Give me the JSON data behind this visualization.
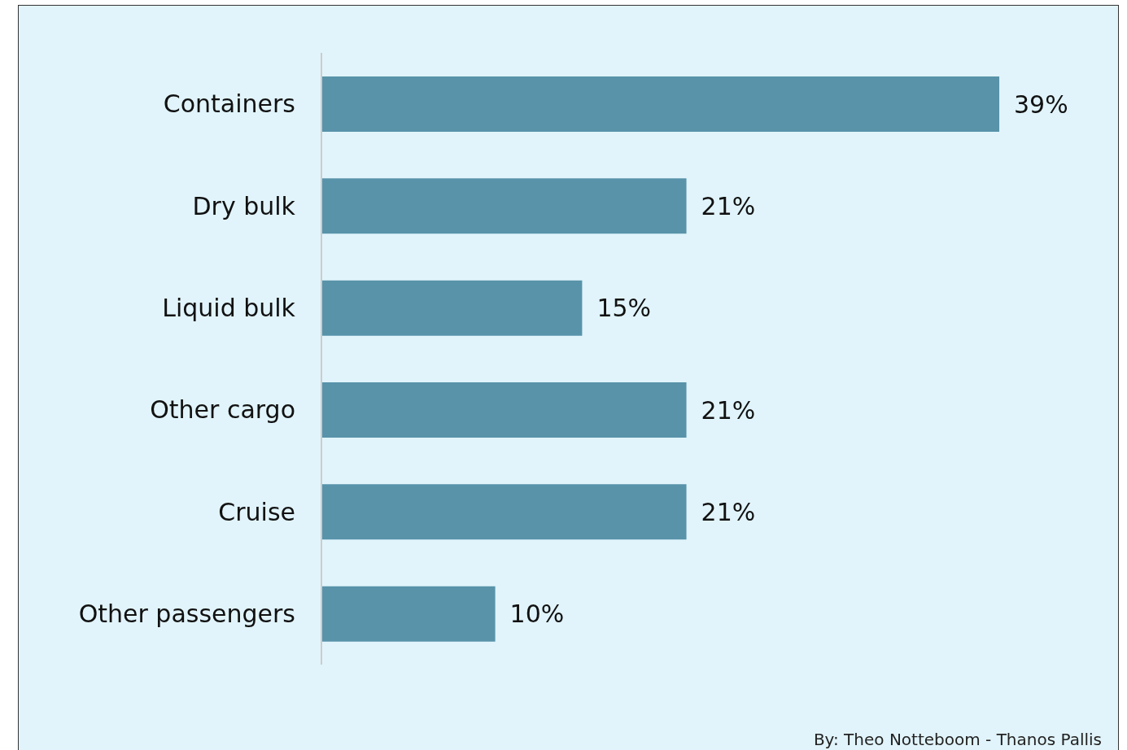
{
  "chart_data": {
    "type": "bar",
    "orientation": "horizontal",
    "categories": [
      "Containers",
      "Dry bulk",
      "Liquid bulk",
      "Other cargo",
      "Cruise",
      "Other passengers"
    ],
    "values": [
      39,
      21,
      15,
      21,
      21,
      10
    ],
    "value_labels": [
      "39%",
      "21%",
      "15%",
      "21%",
      "21%",
      "10%"
    ],
    "color": "#5893aa",
    "annotations": [
      "By: Theo Notteboom - Thanos Pallis"
    ]
  }
}
